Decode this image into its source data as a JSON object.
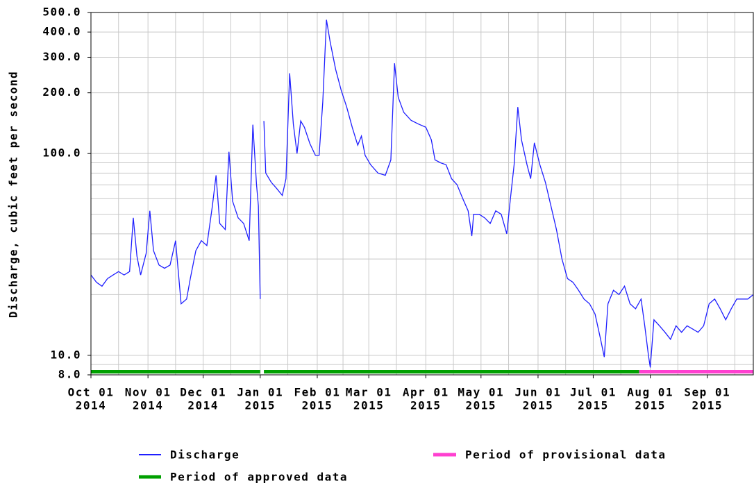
{
  "chart_data": {
    "type": "line",
    "ylabel": "Discharge, cubic feet per second",
    "log_y": true,
    "grid": true,
    "xlim": [
      "2014-10-01",
      "2015-09-26"
    ],
    "ylim": [
      8,
      500
    ],
    "yticks": [
      {
        "value": 8,
        "label": "8.0"
      },
      {
        "value": 10,
        "label": "10.0"
      },
      {
        "value": 100,
        "label": "100.0"
      },
      {
        "value": 200,
        "label": "200.0"
      },
      {
        "value": 300,
        "label": "300.0"
      },
      {
        "value": 400,
        "label": "400.0"
      },
      {
        "value": 500,
        "label": "500.0"
      }
    ],
    "minor_yticks": [
      9,
      20,
      30,
      40,
      50,
      60,
      70,
      80,
      90
    ],
    "xticks": [
      {
        "value": "2014-10-01",
        "label": [
          "Oct 01",
          "2014"
        ]
      },
      {
        "value": "2014-11-01",
        "label": [
          "Nov 01",
          "2014"
        ]
      },
      {
        "value": "2014-12-01",
        "label": [
          "Dec 01",
          "2014"
        ]
      },
      {
        "value": "2015-01-01",
        "label": [
          "Jan 01",
          "2015"
        ]
      },
      {
        "value": "2015-02-01",
        "label": [
          "Feb 01",
          "2015"
        ]
      },
      {
        "value": "2015-03-01",
        "label": [
          "Mar 01",
          "2015"
        ]
      },
      {
        "value": "2015-04-01",
        "label": [
          "Apr 01",
          "2015"
        ]
      },
      {
        "value": "2015-05-01",
        "label": [
          "May 01",
          "2015"
        ]
      },
      {
        "value": "2015-06-01",
        "label": [
          "Jun 01",
          "2015"
        ]
      },
      {
        "value": "2015-07-01",
        "label": [
          "Jul 01",
          "2015"
        ]
      },
      {
        "value": "2015-08-01",
        "label": [
          "Aug 01",
          "2015"
        ]
      },
      {
        "value": "2015-09-01",
        "label": [
          "Sep 01",
          "2015"
        ]
      }
    ],
    "minor_xticks": [
      "2014-10-16",
      "2014-11-16",
      "2014-12-16",
      "2015-01-16",
      "2015-02-15",
      "2015-03-16",
      "2015-04-16",
      "2015-05-16",
      "2015-06-16",
      "2015-07-16",
      "2015-08-16",
      "2015-09-16"
    ],
    "x": [
      "2014-10-01",
      "2014-10-04",
      "2014-10-07",
      "2014-10-10",
      "2014-10-13",
      "2014-10-16",
      "2014-10-19",
      "2014-10-22",
      "2014-10-24",
      "2014-10-26",
      "2014-10-28",
      "2014-10-31",
      "2014-11-02",
      "2014-11-04",
      "2014-11-07",
      "2014-11-10",
      "2014-11-13",
      "2014-11-16",
      "2014-11-19",
      "2014-11-22",
      "2014-11-24",
      "2014-11-27",
      "2014-11-30",
      "2014-12-03",
      "2014-12-06",
      "2014-12-08",
      "2014-12-10",
      "2014-12-13",
      "2014-12-15",
      "2014-12-17",
      "2014-12-20",
      "2014-12-23",
      "2014-12-26",
      "2014-12-28",
      "2014-12-30",
      "2014-12-31",
      "2015-01-01",
      "2015-01-02",
      "2015-01-03",
      "2015-01-04",
      "2015-01-07",
      "2015-01-10",
      "2015-01-13",
      "2015-01-15",
      "2015-01-17",
      "2015-01-19",
      "2015-01-21",
      "2015-01-23",
      "2015-01-25",
      "2015-01-28",
      "2015-01-31",
      "2015-02-02",
      "2015-02-04",
      "2015-02-06",
      "2015-02-08",
      "2015-02-11",
      "2015-02-14",
      "2015-02-17",
      "2015-02-20",
      "2015-02-23",
      "2015-02-25",
      "2015-02-27",
      "2015-03-02",
      "2015-03-06",
      "2015-03-10",
      "2015-03-13",
      "2015-03-15",
      "2015-03-17",
      "2015-03-20",
      "2015-03-24",
      "2015-03-28",
      "2015-04-01",
      "2015-04-04",
      "2015-04-06",
      "2015-04-09",
      "2015-04-12",
      "2015-04-15",
      "2015-04-18",
      "2015-04-21",
      "2015-04-24",
      "2015-04-26",
      "2015-04-27",
      "2015-04-30",
      "2015-05-03",
      "2015-05-06",
      "2015-05-09",
      "2015-05-12",
      "2015-05-15",
      "2015-05-17",
      "2015-05-19",
      "2015-05-21",
      "2015-05-23",
      "2015-05-26",
      "2015-05-28",
      "2015-05-30",
      "2015-06-02",
      "2015-06-05",
      "2015-06-08",
      "2015-06-11",
      "2015-06-14",
      "2015-06-17",
      "2015-06-20",
      "2015-06-23",
      "2015-06-26",
      "2015-06-29",
      "2015-07-02",
      "2015-07-05",
      "2015-07-07",
      "2015-07-09",
      "2015-07-12",
      "2015-07-15",
      "2015-07-18",
      "2015-07-21",
      "2015-07-24",
      "2015-07-27",
      "2015-07-29",
      "2015-07-31",
      "2015-08-01",
      "2015-08-03",
      "2015-08-06",
      "2015-08-09",
      "2015-08-12",
      "2015-08-15",
      "2015-08-18",
      "2015-08-21",
      "2015-08-24",
      "2015-08-27",
      "2015-08-30",
      "2015-09-02",
      "2015-09-05",
      "2015-09-08",
      "2015-09-11",
      "2015-09-14",
      "2015-09-17",
      "2015-09-20",
      "2015-09-23",
      "2015-09-26"
    ],
    "series": [
      {
        "name": "Discharge",
        "color": "#1f1fff",
        "values": [
          25,
          23,
          22,
          24,
          25,
          26,
          25,
          26,
          48,
          31,
          25,
          32,
          52,
          33,
          28,
          27,
          28,
          37,
          18,
          19,
          24,
          33,
          37,
          35,
          55,
          78,
          45,
          42,
          102,
          58,
          48,
          45,
          37,
          139,
          70,
          55,
          19,
          null,
          145,
          80,
          72,
          67,
          62,
          75,
          250,
          140,
          100,
          145,
          135,
          112,
          98,
          98,
          180,
          460,
          358,
          261,
          206,
          170,
          135,
          110,
          122,
          98,
          88,
          80,
          78,
          93,
          280,
          190,
          160,
          146,
          140,
          135,
          117,
          93,
          90,
          88,
          75,
          70,
          60,
          52,
          39,
          50,
          50,
          48,
          45,
          52,
          50,
          40,
          60,
          88,
          170,
          117,
          88,
          75,
          113,
          88,
          72,
          55,
          42,
          30,
          24,
          23,
          21,
          19,
          18,
          16,
          12,
          9.8,
          18,
          21,
          20,
          22,
          18,
          17,
          19,
          14,
          10,
          8.7,
          15,
          14,
          13,
          12,
          14,
          13,
          14,
          13.5,
          13,
          14,
          18,
          19,
          17,
          15,
          17,
          19,
          19,
          19,
          20
        ]
      }
    ],
    "periods": [
      {
        "name": "Period of approved data",
        "color": "#00a000",
        "ranges": [
          [
            "2014-10-01",
            "2015-01-01"
          ],
          [
            "2015-01-03",
            "2015-07-26"
          ]
        ]
      },
      {
        "name": "Period of provisional data",
        "color": "#ff40d0",
        "ranges": [
          [
            "2015-07-26",
            "2015-09-26"
          ]
        ]
      }
    ]
  }
}
